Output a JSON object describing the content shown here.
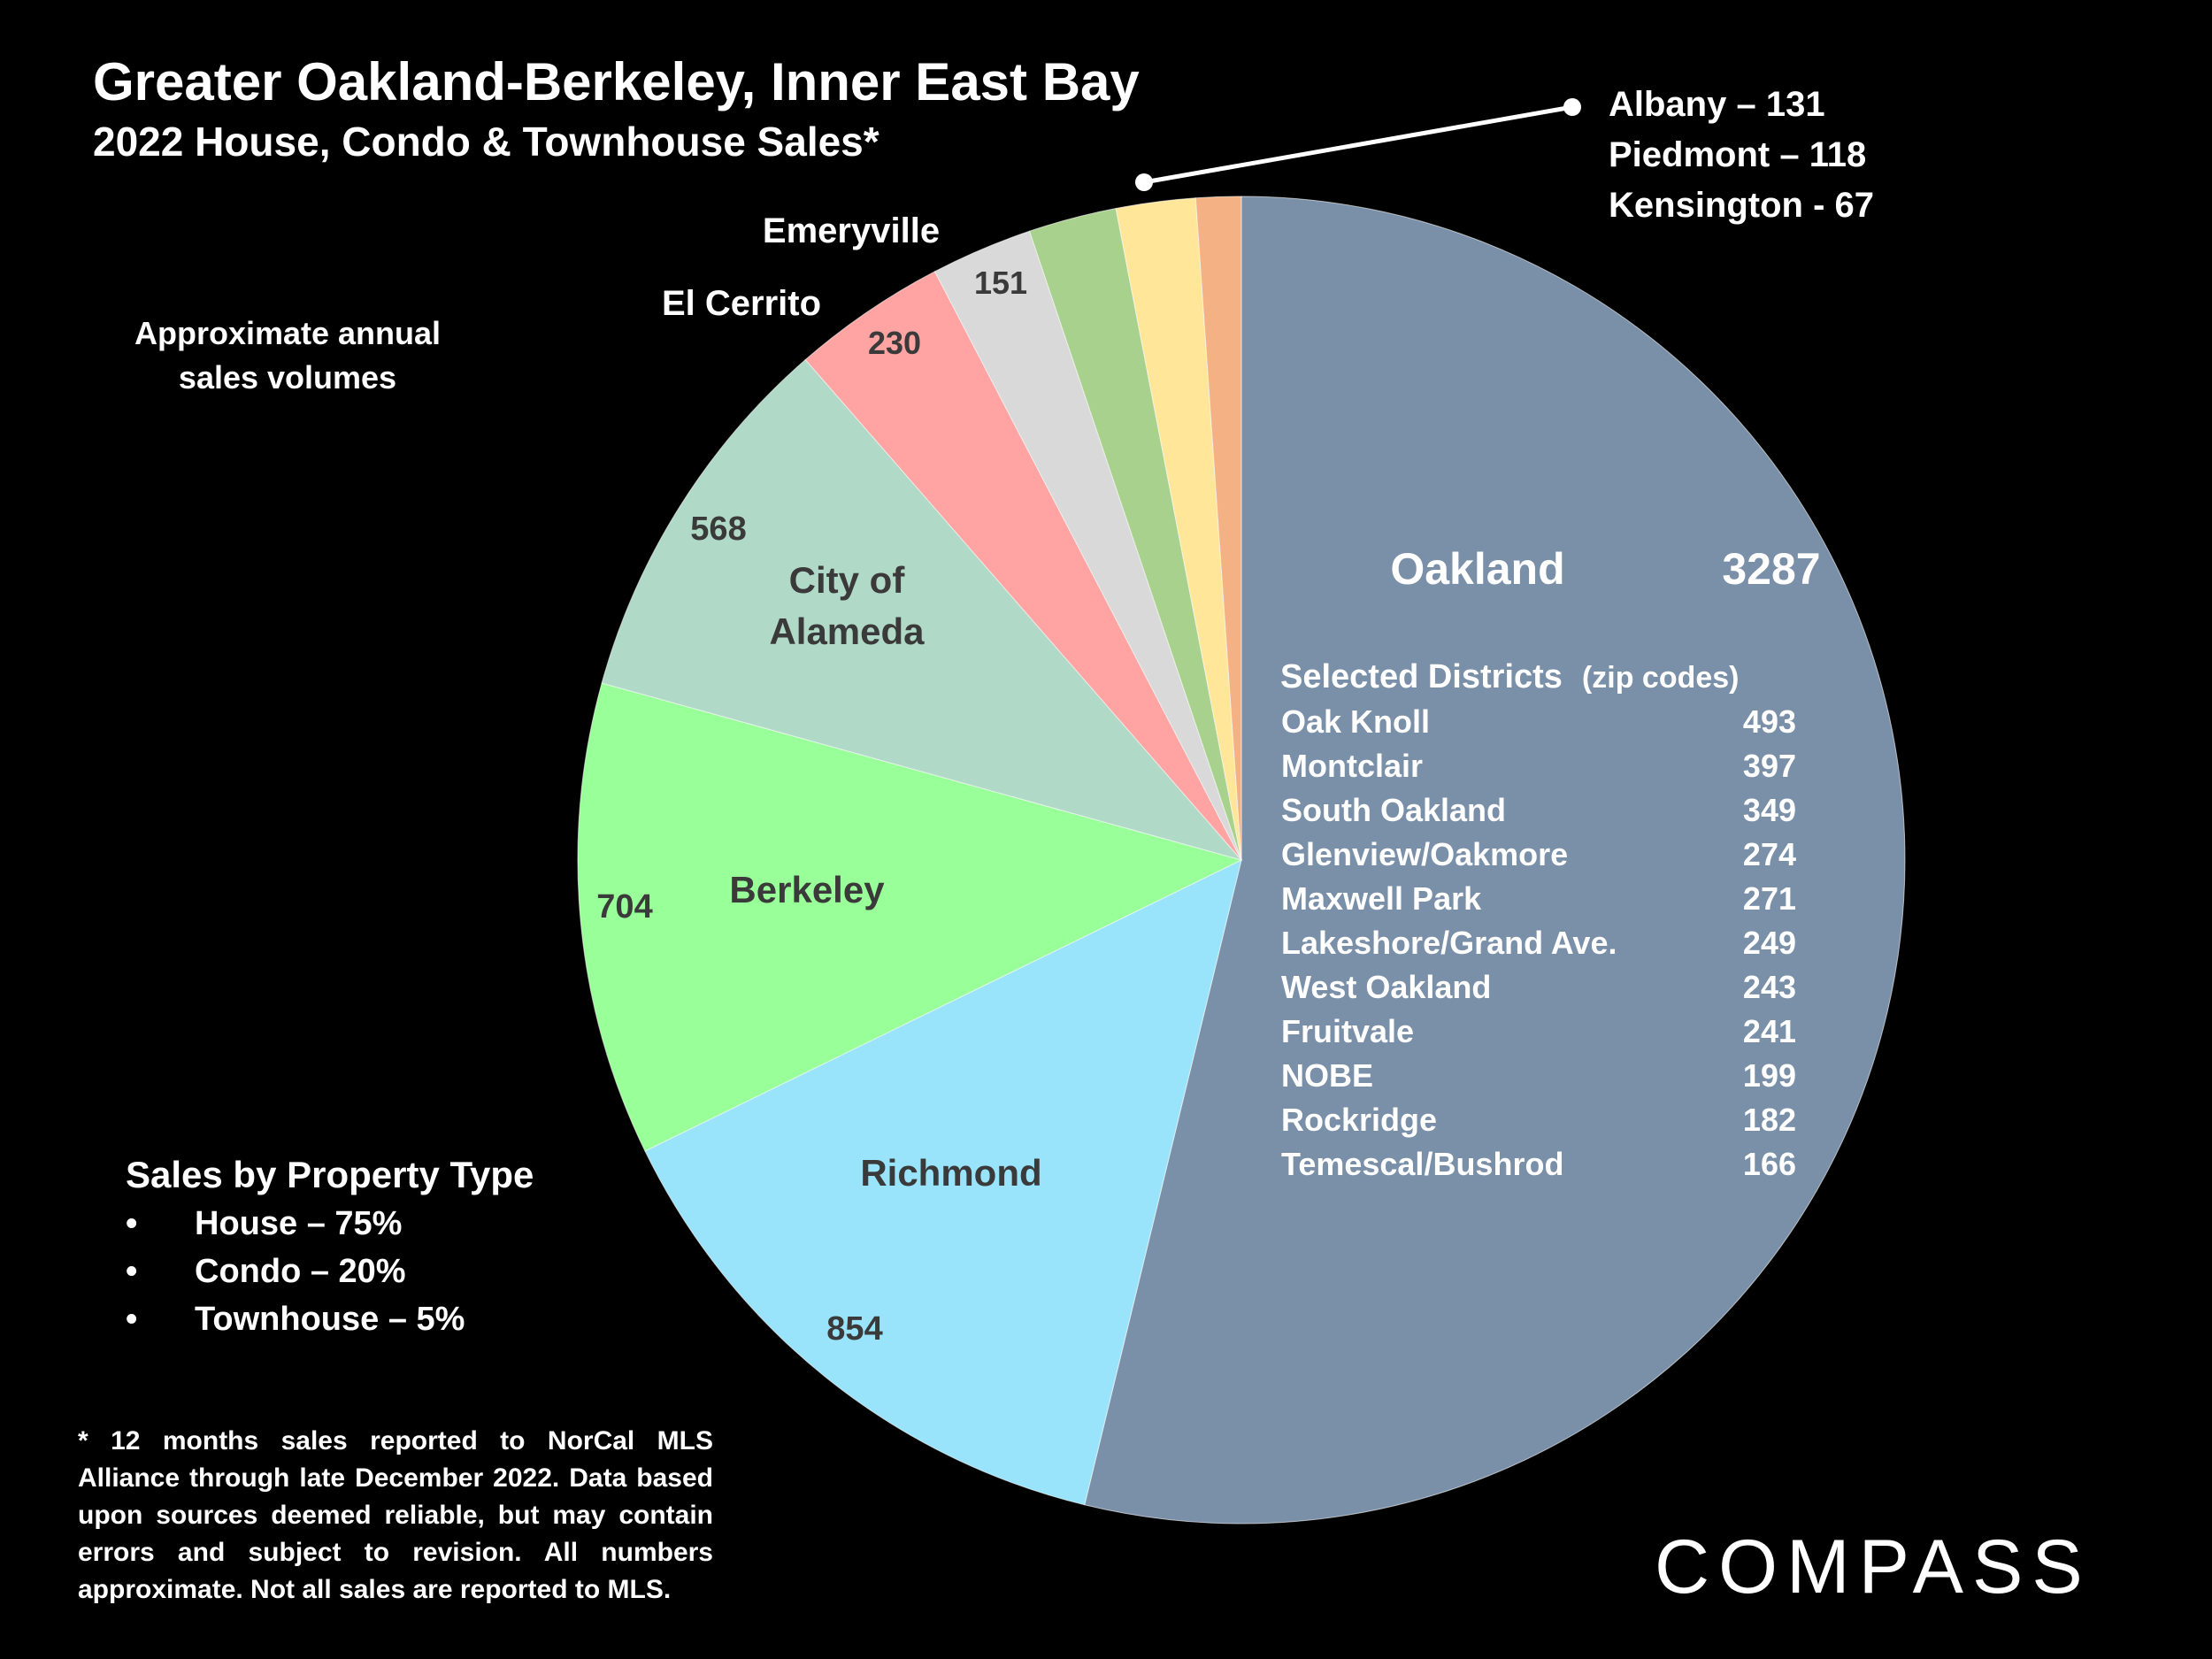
{
  "title": "Greater Oakland-Berkeley, Inner East Bay",
  "subtitle": "2022 House, Condo & Townhouse Sales*",
  "approx_note_line1": "Approximate annual",
  "approx_note_line2": "sales volumes",
  "callout": [
    "Albany – 131",
    "Piedmont – 118",
    "Kensington - 67"
  ],
  "property_type": {
    "title": "Sales by Property Type",
    "bullet": "•",
    "items": [
      "House – 75%",
      "Condo – 20%",
      "Townhouse – 5%"
    ]
  },
  "footnote": "* 12 months sales reported to NorCal MLS Alliance through late December 2022. Data based upon sources deemed reliable, but may contain errors and subject to revision. All numbers approximate. Not all sales are reported to MLS.",
  "logo": "COMPASS",
  "oakland_panel": {
    "header": "Selected Districts",
    "header_note": "(zip codes)",
    "districts": [
      {
        "name": "Oak Knoll",
        "value": "493"
      },
      {
        "name": "Montclair",
        "value": "397"
      },
      {
        "name": "South Oakland",
        "value": "349"
      },
      {
        "name": "Glenview/Oakmore",
        "value": "274"
      },
      {
        "name": "Maxwell Park",
        "value": "271"
      },
      {
        "name": "Lakeshore/Grand Ave.",
        "value": "249"
      },
      {
        "name": "West Oakland",
        "value": "243"
      },
      {
        "name": "Fruitvale",
        "value": "241"
      },
      {
        "name": "NOBE",
        "value": "199"
      },
      {
        "name": "Rockridge",
        "value": "182"
      },
      {
        "name": "Temescal/Bushrod",
        "value": "166"
      }
    ]
  },
  "chart_data": {
    "type": "pie",
    "title": "Greater Oakland-Berkeley, Inner East Bay",
    "subtitle": "2022 House, Condo & Townhouse Sales*",
    "start": "12 o'clock",
    "direction": "clockwise",
    "slices": [
      {
        "name": "Oakland",
        "value": 3287,
        "color": "#7A8FA8",
        "name_label": "Oakland",
        "value_label": "3287",
        "label_color": "#ffffff"
      },
      {
        "name": "Richmond",
        "value": 854,
        "color": "#99E3FB",
        "name_label": "Richmond",
        "value_label": "854",
        "label_color": "#3a3a3a"
      },
      {
        "name": "Berkeley",
        "value": 704,
        "color": "#99FF99",
        "name_label": "Berkeley",
        "value_label": "704",
        "label_color": "#3a3a3a"
      },
      {
        "name": "City of Alameda",
        "value": 568,
        "color": "#B0DAC7",
        "name_label": [
          "City of",
          "Alameda"
        ],
        "value_label": "568",
        "label_color": "#3a3a3a"
      },
      {
        "name": "El Cerrito",
        "value": 230,
        "color": "#FFA3A3",
        "name_label": "El Cerrito",
        "value_label": "230",
        "label_color": "#3a3a3a"
      },
      {
        "name": "Emeryville",
        "value": 151,
        "color": "#D9D9D9",
        "name_label": "Emeryville",
        "value_label": "151",
        "label_color": "#3a3a3a"
      },
      {
        "name": "Albany",
        "value": 131,
        "color": "#A9D18E",
        "label_color": "#3a3a3a"
      },
      {
        "name": "Piedmont",
        "value": 118,
        "color": "#FFE699",
        "label_color": "#3a3a3a"
      },
      {
        "name": "Kensington",
        "value": 67,
        "color": "#F4B183",
        "label_color": "#3a3a3a"
      }
    ],
    "legend": "none"
  }
}
